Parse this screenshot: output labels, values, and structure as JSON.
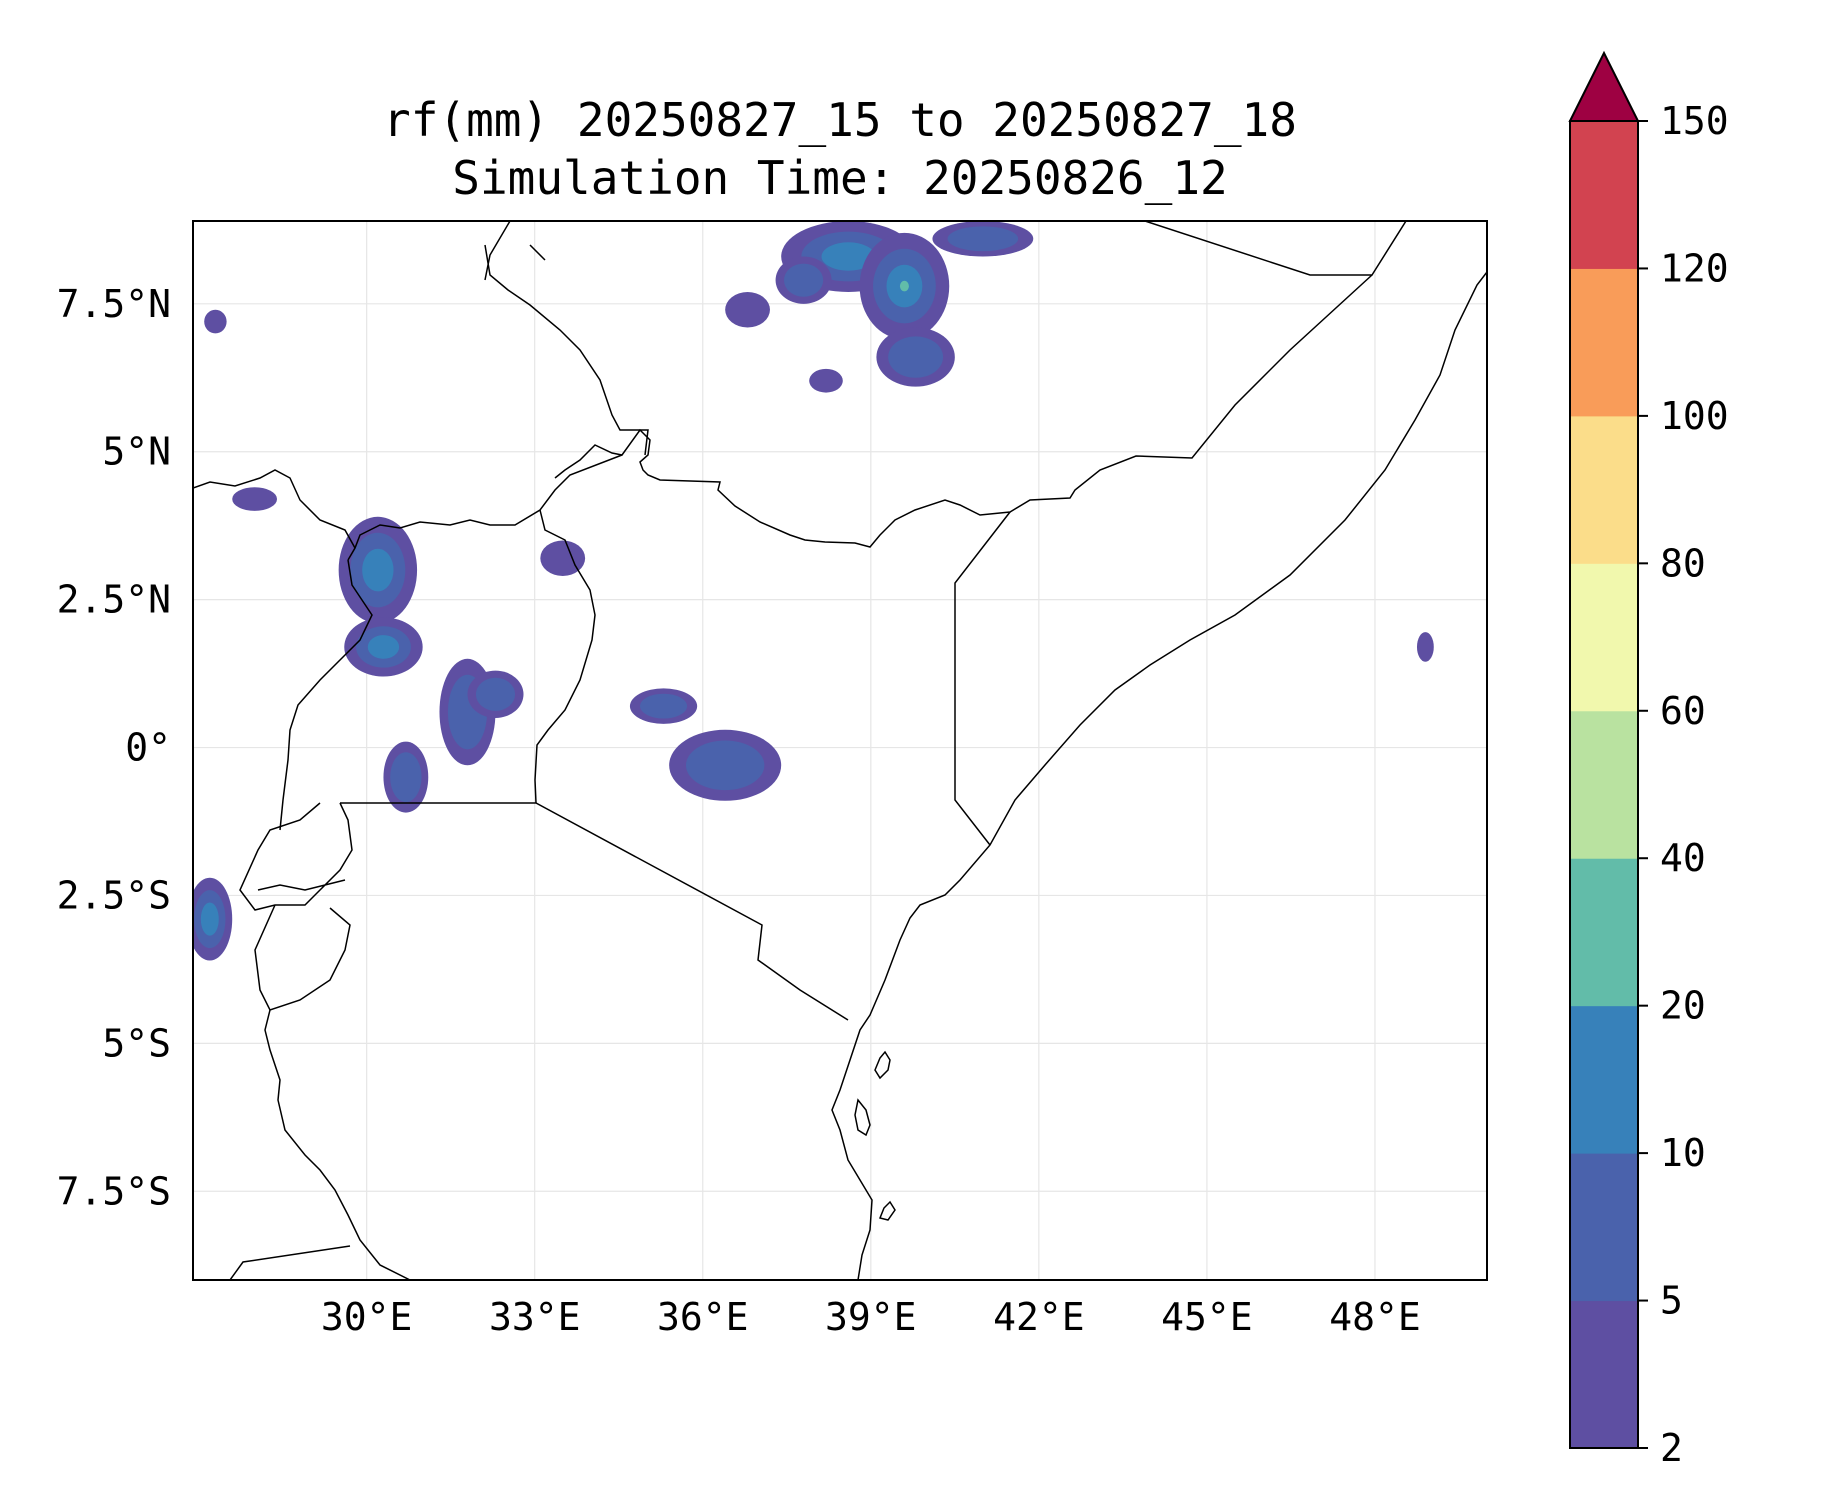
{
  "title": {
    "line1": "rf(mm) 20250827_15 to 20250827_18",
    "line2": "Simulation Time: 20250826_12"
  },
  "map": {
    "lon_range": [
      26.9,
      50.0
    ],
    "lat_range": [
      -9.0,
      8.9
    ],
    "x_tick_labels": [
      {
        "lon": 30,
        "label": "30°E"
      },
      {
        "lon": 33,
        "label": "33°E"
      },
      {
        "lon": 36,
        "label": "36°E"
      },
      {
        "lon": 39,
        "label": "39°E"
      },
      {
        "lon": 42,
        "label": "42°E"
      },
      {
        "lon": 45,
        "label": "45°E"
      },
      {
        "lon": 48,
        "label": "48°E"
      }
    ],
    "y_tick_labels": [
      {
        "lat": 7.5,
        "label": "7.5°N"
      },
      {
        "lat": 5,
        "label": "5°N"
      },
      {
        "lat": 2.5,
        "label": "2.5°N"
      },
      {
        "lat": 0,
        "label": "0°"
      },
      {
        "lat": -2.5,
        "label": "2.5°S"
      },
      {
        "lat": -5,
        "label": "5°S"
      },
      {
        "lat": -7.5,
        "label": "7.5°S"
      }
    ],
    "gridlines": true
  },
  "colorbar": {
    "extend": "max",
    "levels": [
      {
        "value": 2,
        "label": "2"
      },
      {
        "value": 5,
        "label": "5"
      },
      {
        "value": 10,
        "label": "10"
      },
      {
        "value": 20,
        "label": "20"
      },
      {
        "value": 40,
        "label": "40"
      },
      {
        "value": 60,
        "label": "60"
      },
      {
        "value": 80,
        "label": "80"
      },
      {
        "value": 100,
        "label": "100"
      },
      {
        "value": 120,
        "label": "120"
      },
      {
        "value": 150,
        "label": "150"
      }
    ],
    "colors": [
      "#5e4fa2",
      "#4a62ac",
      "#3781ba",
      "#62bca9",
      "#b9e2a0",
      "#f1f8ad",
      "#fbdd8a",
      "#f99c59",
      "#d24350"
    ],
    "extend_color": "#9e0142"
  },
  "rain_cells": [
    {
      "lon": 38.6,
      "lat": 8.3,
      "rx": 1.2,
      "ry": 0.6,
      "level": 2
    },
    {
      "lon": 39.6,
      "lat": 7.8,
      "rx": 0.8,
      "ry": 0.9,
      "level": 3
    },
    {
      "lon": 37.8,
      "lat": 7.9,
      "rx": 0.5,
      "ry": 0.4,
      "level": 1
    },
    {
      "lon": 39.8,
      "lat": 6.6,
      "rx": 0.7,
      "ry": 0.5,
      "level": 1
    },
    {
      "lon": 41.0,
      "lat": 8.6,
      "rx": 0.9,
      "ry": 0.3,
      "level": 1
    },
    {
      "lon": 36.8,
      "lat": 7.4,
      "rx": 0.4,
      "ry": 0.3,
      "level": 0
    },
    {
      "lon": 38.2,
      "lat": 6.2,
      "rx": 0.3,
      "ry": 0.2,
      "level": 0
    },
    {
      "lon": 30.2,
      "lat": 3.0,
      "rx": 0.7,
      "ry": 0.9,
      "level": 2
    },
    {
      "lon": 30.3,
      "lat": 1.7,
      "rx": 0.7,
      "ry": 0.5,
      "level": 2
    },
    {
      "lon": 31.8,
      "lat": 0.6,
      "rx": 0.5,
      "ry": 0.9,
      "level": 1
    },
    {
      "lon": 32.3,
      "lat": 0.9,
      "rx": 0.5,
      "ry": 0.4,
      "level": 1
    },
    {
      "lon": 30.7,
      "lat": -0.5,
      "rx": 0.4,
      "ry": 0.6,
      "level": 1
    },
    {
      "lon": 36.4,
      "lat": -0.3,
      "rx": 1.0,
      "ry": 0.6,
      "level": 1
    },
    {
      "lon": 35.3,
      "lat": 0.7,
      "rx": 0.6,
      "ry": 0.3,
      "level": 1
    },
    {
      "lon": 27.2,
      "lat": -2.9,
      "rx": 0.4,
      "ry": 0.7,
      "level": 2
    },
    {
      "lon": 33.5,
      "lat": 3.2,
      "rx": 0.4,
      "ry": 0.3,
      "level": 0
    },
    {
      "lon": 27.3,
      "lat": 7.2,
      "rx": 0.2,
      "ry": 0.2,
      "level": 0
    },
    {
      "lon": 48.9,
      "lat": 1.7,
      "rx": 0.15,
      "ry": 0.25,
      "level": 0
    },
    {
      "lon": 28.0,
      "lat": 4.2,
      "rx": 0.4,
      "ry": 0.2,
      "level": 0
    }
  ]
}
